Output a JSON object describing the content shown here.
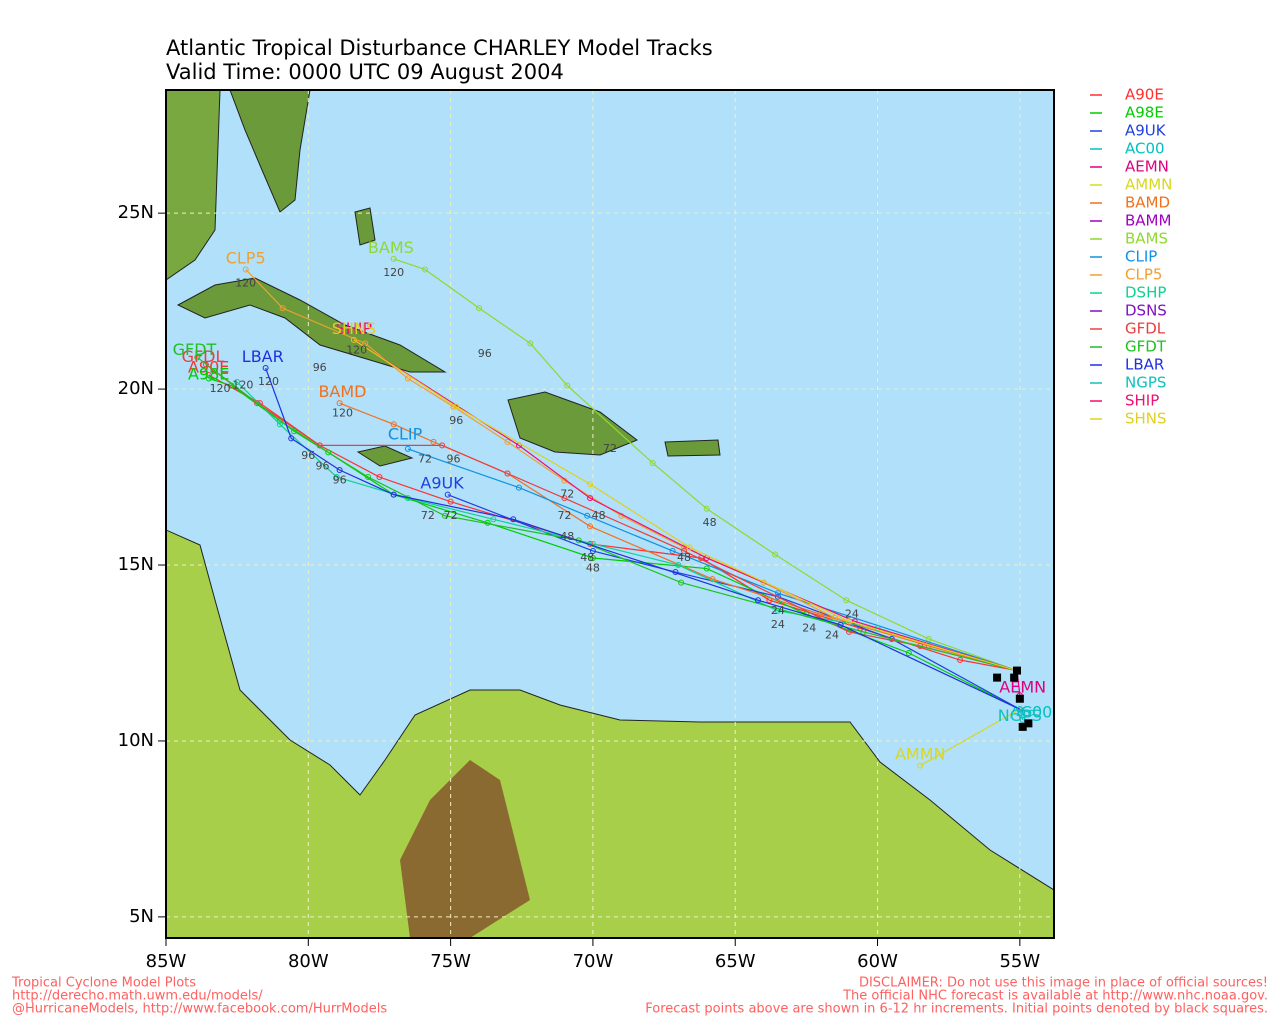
{
  "map": {
    "title": "Atlantic Tropical Disturbance CHARLEY Model Tracks",
    "subtitle": "Valid Time: 0000 UTC 09 August 2004",
    "lonlim": [
      -85,
      -53.8
    ],
    "latlim": [
      4.4,
      28.5
    ],
    "lonticks": [
      {
        "value": -85,
        "label": "85W"
      },
      {
        "value": -80,
        "label": "80W"
      },
      {
        "value": -75,
        "label": "75W"
      },
      {
        "value": -70,
        "label": "70W"
      },
      {
        "value": -65,
        "label": "65W"
      },
      {
        "value": -60,
        "label": "60W"
      },
      {
        "value": -55,
        "label": "55W"
      }
    ],
    "latticks": [
      {
        "value": 5,
        "label": "5N"
      },
      {
        "value": 10,
        "label": "10N"
      },
      {
        "value": 15,
        "label": "15N"
      },
      {
        "value": 20,
        "label": "20N"
      },
      {
        "value": 25,
        "label": "25N"
      }
    ],
    "grid": true,
    "initial_positions": [
      [
        -55.1,
        12.0
      ],
      [
        -55.2,
        11.8
      ],
      [
        -55.0,
        11.2
      ],
      [
        -54.9,
        10.4
      ],
      [
        -54.7,
        10.5
      ],
      [
        -55.8,
        11.8
      ]
    ],
    "models": [
      {
        "name": "A90E",
        "color": "#ff3030",
        "track": [
          [
            -55.1,
            12.0
          ],
          [
            -57.1,
            12.3
          ],
          [
            -60.6,
            13.2
          ],
          [
            -63.8,
            14.0
          ],
          [
            -66.2,
            15.2
          ],
          [
            -70.1,
            15.6
          ],
          [
            -75.0,
            16.8
          ],
          [
            -77.5,
            17.5
          ],
          [
            -79.6,
            18.4
          ],
          [
            -81.7,
            19.6
          ],
          [
            -83.5,
            20.4
          ]
        ],
        "label_at": [
          -83.5,
          20.6
        ]
      },
      {
        "name": "A98E",
        "color": "#00cc00",
        "track": [
          [
            -55.0,
            10.9
          ],
          [
            -58.9,
            12.5
          ],
          [
            -62.5,
            13.6
          ],
          [
            -66.0,
            14.9
          ],
          [
            -70.0,
            15.2
          ],
          [
            -73.7,
            16.2
          ],
          [
            -77.0,
            17.0
          ],
          [
            -79.3,
            18.2
          ],
          [
            -81.0,
            19.1
          ],
          [
            -82.7,
            20.1
          ],
          [
            -83.5,
            20.3
          ]
        ],
        "label_at": [
          -83.5,
          20.4
        ]
      },
      {
        "name": "A9UK",
        "color": "#2040e0",
        "track": [
          [
            -55.0,
            10.9
          ],
          [
            -59.5,
            12.9
          ],
          [
            -63.5,
            14.1
          ],
          [
            -67.1,
            14.8
          ],
          [
            -70.0,
            15.4
          ],
          [
            -75.1,
            17.0
          ]
        ],
        "label_at": [
          -75.3,
          17.3
        ]
      },
      {
        "name": "AC00",
        "color": "#00c0c0",
        "track": [
          [
            -55.0,
            10.9
          ],
          [
            -54.6,
            10.8
          ]
        ],
        "label_at": [
          -54.6,
          10.8
        ]
      },
      {
        "name": "AEMN",
        "color": "#e0007f",
        "track": [
          [
            -55.1,
            12.0
          ],
          [
            -55.0,
            11.3
          ]
        ],
        "label_at": [
          -54.9,
          11.5
        ]
      },
      {
        "name": "AMMN",
        "color": "#d8d820",
        "track": [
          [
            -55.0,
            10.9
          ],
          [
            -58.5,
            9.3
          ]
        ],
        "label_at": [
          -58.5,
          9.6
        ]
      },
      {
        "name": "BAMD",
        "color": "#f07020",
        "track": [
          [
            -55.1,
            12.0
          ],
          [
            -58.2,
            12.7
          ],
          [
            -62.0,
            13.6
          ],
          [
            -65.8,
            14.6
          ],
          [
            -70.1,
            16.1
          ],
          [
            -73.0,
            17.6
          ],
          [
            -75.6,
            18.5
          ],
          [
            -77.0,
            19.0
          ],
          [
            -78.9,
            19.6
          ]
        ],
        "label_at": [
          -78.8,
          19.9
        ]
      },
      {
        "name": "BAMM",
        "color": "#a000c0",
        "track": [],
        "label_at": null
      },
      {
        "name": "BAMS",
        "color": "#90d830",
        "track": [
          [
            -55.1,
            12.0
          ],
          [
            -58.2,
            12.9
          ],
          [
            -61.1,
            14.0
          ],
          [
            -63.6,
            15.3
          ],
          [
            -66.0,
            16.6
          ],
          [
            -67.9,
            17.9
          ],
          [
            -70.9,
            20.1
          ],
          [
            -72.2,
            21.3
          ],
          [
            -74.0,
            22.3
          ],
          [
            -75.9,
            23.4
          ],
          [
            -77.0,
            23.7
          ]
        ],
        "label_at": [
          -77.1,
          24.0
        ]
      },
      {
        "name": "CLIP",
        "color": "#1090e0",
        "track": [
          [
            -55.1,
            12.0
          ],
          [
            -63.5,
            14.2
          ],
          [
            -67.2,
            15.4
          ],
          [
            -70.2,
            16.4
          ],
          [
            -72.6,
            17.2
          ],
          [
            -76.5,
            18.3
          ]
        ],
        "label_at": [
          -76.6,
          18.7
        ]
      },
      {
        "name": "CLP5",
        "color": "#f0a030",
        "track": [
          [
            -55.1,
            12.0
          ],
          [
            -61.5,
            13.5
          ],
          [
            -64.0,
            14.5
          ],
          [
            -66.8,
            15.5
          ],
          [
            -69.0,
            16.4
          ],
          [
            -71.0,
            17.4
          ],
          [
            -73.0,
            18.5
          ],
          [
            -74.9,
            19.5
          ],
          [
            -76.5,
            20.3
          ],
          [
            -78.0,
            21.3
          ],
          [
            -80.9,
            22.3
          ],
          [
            -82.2,
            23.4
          ]
        ],
        "label_at": [
          -82.2,
          23.7
        ]
      },
      {
        "name": "DSHP",
        "color": "#10d090",
        "track": [
          [
            -55.1,
            12.0
          ],
          [
            -60.0,
            13.2
          ],
          [
            -63.5,
            13.7
          ],
          [
            -67.0,
            15.0
          ],
          [
            -70.0,
            15.6
          ],
          [
            -73.5,
            16.3
          ],
          [
            -76.5,
            16.9
          ],
          [
            -79.0,
            17.5
          ],
          [
            -81.0,
            19.0
          ],
          [
            -82.5,
            20.2
          ]
        ],
        "label_at": null
      },
      {
        "name": "DSNS",
        "color": "#8010c0",
        "track": [],
        "label_at": null
      },
      {
        "name": "GFDL",
        "color": "#e84040",
        "track": [
          [
            -55.1,
            12.0
          ],
          [
            -58.5,
            12.7
          ],
          [
            -61.0,
            13.1
          ],
          [
            -66.8,
            15.4
          ],
          [
            -71.0,
            16.9
          ],
          [
            -73.0,
            17.6
          ],
          [
            -75.3,
            18.4
          ],
          [
            -79.6,
            18.4
          ],
          [
            -81.8,
            19.6
          ],
          [
            -83.6,
            20.7
          ]
        ],
        "label_at": [
          -83.7,
          20.9
        ]
      },
      {
        "name": "GFDT",
        "color": "#20c020",
        "track": [
          [
            -55.1,
            12.0
          ],
          [
            -60.5,
            13.1
          ],
          [
            -66.9,
            14.5
          ],
          [
            -70.5,
            15.7
          ],
          [
            -75.2,
            16.4
          ],
          [
            -77.9,
            17.5
          ],
          [
            -80.5,
            18.8
          ],
          [
            -83.9,
            20.9
          ]
        ],
        "label_at": [
          -84.0,
          21.1
        ]
      },
      {
        "name": "LBAR",
        "color": "#2030e0",
        "track": [
          [
            -55.0,
            10.9
          ],
          [
            -61.3,
            13.3
          ],
          [
            -64.2,
            14.0
          ],
          [
            -72.8,
            16.3
          ],
          [
            -77.0,
            17.0
          ],
          [
            -78.9,
            17.7
          ],
          [
            -80.6,
            18.6
          ],
          [
            -81.5,
            20.6
          ]
        ],
        "label_at": [
          -81.6,
          20.9
        ]
      },
      {
        "name": "NGPS",
        "color": "#10c0c0",
        "track": [
          [
            -55.0,
            10.9
          ],
          [
            -54.9,
            10.6
          ]
        ],
        "label_at": [
          -55.0,
          10.7
        ]
      },
      {
        "name": "SHIP",
        "color": "#f01070",
        "track": [
          [
            -55.1,
            12.0
          ],
          [
            -60.8,
            13.4
          ],
          [
            -66.0,
            15.2
          ],
          [
            -70.1,
            16.9
          ],
          [
            -72.6,
            18.4
          ],
          [
            -78.4,
            21.4
          ]
        ],
        "label_at": [
          -78.4,
          21.7
        ]
      },
      {
        "name": "SHNS",
        "color": "#e0d020",
        "track": [
          [
            -55.1,
            12.0
          ],
          [
            -61.0,
            13.4
          ],
          [
            -66.6,
            15.5
          ],
          [
            -70.1,
            17.3
          ],
          [
            -74.8,
            19.5
          ],
          [
            -78.4,
            21.4
          ]
        ],
        "label_at": [
          -78.4,
          21.7
        ]
      }
    ],
    "hour_labels": [
      {
        "text": 120,
        "lon": -82.3,
        "lat": 20.1
      },
      {
        "text": 120,
        "lon": -83.1,
        "lat": 20.0
      },
      {
        "text": 120,
        "lon": -82.2,
        "lat": 23.0
      },
      {
        "text": 120,
        "lon": -78.3,
        "lat": 21.1
      },
      {
        "text": 120,
        "lon": -81.4,
        "lat": 20.2
      },
      {
        "text": 120,
        "lon": -78.8,
        "lat": 19.3
      },
      {
        "text": 120,
        "lon": -77.0,
        "lat": 23.3
      },
      {
        "text": 96,
        "lon": -79.6,
        "lat": 20.6
      },
      {
        "text": 96,
        "lon": -74.8,
        "lat": 19.1
      },
      {
        "text": 96,
        "lon": -80.0,
        "lat": 18.1
      },
      {
        "text": 96,
        "lon": -79.5,
        "lat": 17.8
      },
      {
        "text": 96,
        "lon": -78.9,
        "lat": 17.4
      },
      {
        "text": 96,
        "lon": -73.8,
        "lat": 21.0
      },
      {
        "text": 96,
        "lon": -74.9,
        "lat": 18.0
      },
      {
        "text": 72,
        "lon": -70.9,
        "lat": 17.0
      },
      {
        "text": 72,
        "lon": -75.9,
        "lat": 18.0
      },
      {
        "text": 72,
        "lon": -71.0,
        "lat": 16.4
      },
      {
        "text": 72,
        "lon": -75.8,
        "lat": 16.4
      },
      {
        "text": 72,
        "lon": -75.0,
        "lat": 16.4
      },
      {
        "text": 72,
        "lon": -69.4,
        "lat": 18.3
      },
      {
        "text": 48,
        "lon": -66.8,
        "lat": 15.2
      },
      {
        "text": 48,
        "lon": -70.9,
        "lat": 15.8
      },
      {
        "text": 48,
        "lon": -70.2,
        "lat": 15.2
      },
      {
        "text": 48,
        "lon": -70.0,
        "lat": 14.9
      },
      {
        "text": 48,
        "lon": -65.9,
        "lat": 16.2
      },
      {
        "text": 48,
        "lon": -69.8,
        "lat": 16.4
      },
      {
        "text": 24,
        "lon": -61.6,
        "lat": 13.0
      },
      {
        "text": 24,
        "lon": -63.5,
        "lat": 13.7
      },
      {
        "text": 24,
        "lon": -63.5,
        "lat": 13.3
      },
      {
        "text": 24,
        "lon": -62.4,
        "lat": 13.2
      },
      {
        "text": 24,
        "lon": -60.9,
        "lat": 13.6
      }
    ],
    "footer_left": [
      "Tropical Cyclone Model Plots",
      "http://derecho.math.uwm.edu/models/",
      "@HurricaneModels, http://www.facebook.com/HurrModels"
    ],
    "footer_right": [
      "DISCLAIMER: Do not use this image in place of official sources!",
      "The official NHC forecast is available at http://www.nhc.noaa.gov.",
      "Forecast points above are shown in 6-12 hr increments. Initial points denoted by black squares."
    ]
  }
}
